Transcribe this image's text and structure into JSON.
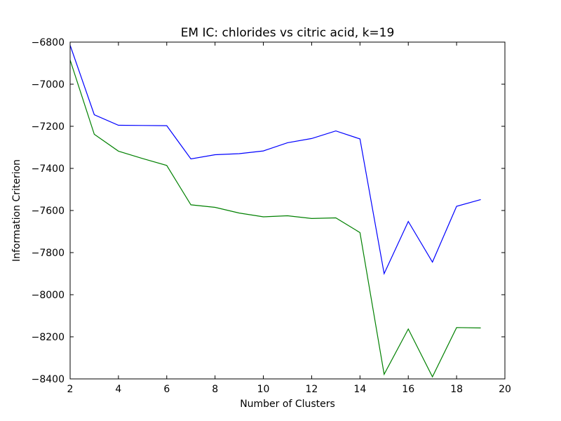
{
  "chart_data": {
    "type": "line",
    "title": "EM IC: chlorides vs citric acid, k=19",
    "xlabel": "Number of Clusters",
    "ylabel": "Information Criterion",
    "xlim": [
      2,
      20
    ],
    "ylim": [
      -8400,
      -6800
    ],
    "xticks": [
      2,
      4,
      6,
      8,
      10,
      12,
      14,
      16,
      18,
      20
    ],
    "yticks": [
      -8400,
      -8200,
      -8000,
      -7800,
      -7600,
      -7400,
      -7200,
      -7000,
      -6800
    ],
    "x": [
      2,
      3,
      4,
      5,
      6,
      7,
      8,
      9,
      10,
      11,
      12,
      13,
      14,
      15,
      16,
      17,
      18,
      19
    ],
    "series": [
      {
        "color": "#0000ff",
        "values": [
          -6815,
          -7145,
          -7195,
          -7196,
          -7197,
          -7355,
          -7335,
          -7330,
          -7317,
          -7278,
          -7258,
          -7222,
          -7260,
          -7900,
          -7652,
          -7845,
          -7580,
          -7548
        ]
      },
      {
        "color": "#008000",
        "values": [
          -6885,
          -7238,
          -7318,
          -7353,
          -7386,
          -7573,
          -7585,
          -7612,
          -7630,
          -7625,
          -7638,
          -7635,
          -7705,
          -8378,
          -8163,
          -8390,
          -8156,
          -8158
        ]
      }
    ],
    "grid": false,
    "legend": false
  }
}
